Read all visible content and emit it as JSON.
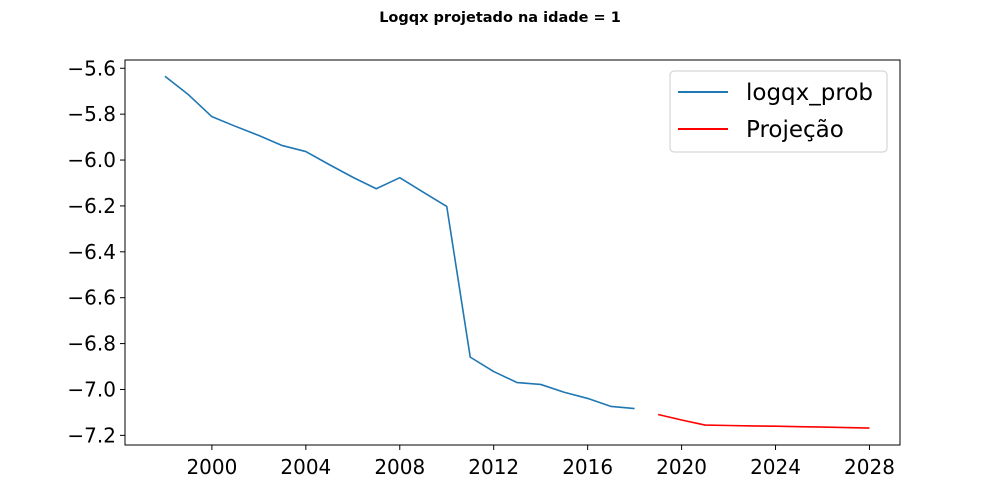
{
  "chart_data": {
    "type": "line",
    "title": "Logqx projetado na idade = 1",
    "xlabel": "",
    "ylabel": "",
    "xlim": [
      1996.3,
      2029.3
    ],
    "ylim": [
      -7.242,
      -5.564
    ],
    "x_ticks": [
      2000,
      2004,
      2008,
      2012,
      2016,
      2020,
      2024,
      2028
    ],
    "x_tick_labels": [
      "2000",
      "2004",
      "2008",
      "2012",
      "2016",
      "2020",
      "2024",
      "2028"
    ],
    "y_ticks": [
      -5.6,
      -5.8,
      -6.0,
      -6.2,
      -6.4,
      -6.6,
      -6.8,
      -7.0,
      -7.2
    ],
    "y_tick_labels": [
      "−5.6",
      "−5.8",
      "−6.0",
      "−6.2",
      "−6.4",
      "−6.6",
      "−6.8",
      "−7.0",
      "−7.2"
    ],
    "grid": false,
    "legend_position": "top-right",
    "series": [
      {
        "name": "logqx_prob",
        "color": "#1f77b4",
        "x": [
          1998,
          1999,
          2000,
          2001,
          2002,
          2003,
          2004,
          2005,
          2006,
          2007,
          2008,
          2009,
          2010,
          2011,
          2012,
          2013,
          2014,
          2015,
          2016,
          2017,
          2018
        ],
        "y": [
          -5.635,
          -5.715,
          -5.811,
          -5.853,
          -5.893,
          -5.937,
          -5.963,
          -6.02,
          -6.075,
          -6.125,
          -6.077,
          -6.14,
          -6.202,
          -6.859,
          -6.922,
          -6.97,
          -6.978,
          -7.012,
          -7.039,
          -7.074,
          -7.083
        ]
      },
      {
        "name": "Projeção",
        "color": "#ff0000",
        "x": [
          2019,
          2020,
          2021,
          2022,
          2023,
          2024,
          2025,
          2026,
          2027,
          2028
        ],
        "y": [
          -7.109,
          -7.133,
          -7.155,
          -7.157,
          -7.159,
          -7.16,
          -7.162,
          -7.164,
          -7.166,
          -7.168
        ]
      }
    ]
  }
}
